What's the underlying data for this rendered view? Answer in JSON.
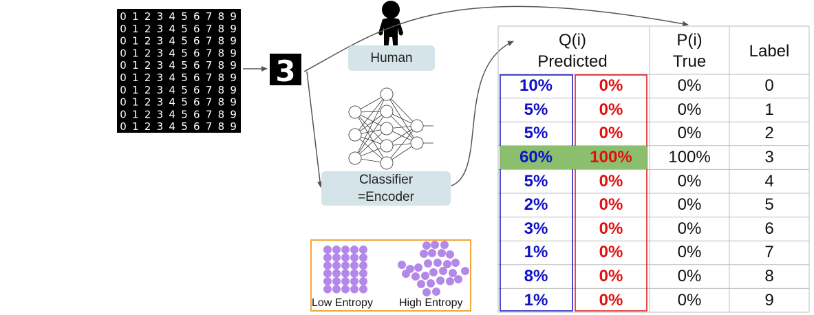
{
  "human_label": "Human",
  "classifier_label": "Classifier\n=Encoder",
  "mnist_digits": [
    "0",
    "1",
    "2",
    "3",
    "4",
    "5",
    "6",
    "7",
    "8",
    "9"
  ],
  "input_digit": "3",
  "entropy": {
    "low_label": "Low Entropy",
    "high_label": "High Entropy",
    "dot_color": "#b388e8",
    "border_color": "#f4a53a"
  },
  "table": {
    "q_header": "Q(i)\nPredicted",
    "p_header": "P(i)\nTrue",
    "label_header": "Label",
    "highlight_color": "#8bbf6e",
    "rows": [
      {
        "q_blue": "10%",
        "q_red": "0%",
        "p": "0%",
        "label": "0"
      },
      {
        "q_blue": "5%",
        "q_red": "0%",
        "p": "0%",
        "label": "1"
      },
      {
        "q_blue": "5%",
        "q_red": "0%",
        "p": "0%",
        "label": "2"
      },
      {
        "q_blue": "60%",
        "q_red": "100%",
        "p": "100%",
        "label": "3",
        "highlight": true
      },
      {
        "q_blue": "5%",
        "q_red": "0%",
        "p": "0%",
        "label": "4"
      },
      {
        "q_blue": "2%",
        "q_red": "0%",
        "p": "0%",
        "label": "5"
      },
      {
        "q_blue": "3%",
        "q_red": "0%",
        "p": "0%",
        "label": "6"
      },
      {
        "q_blue": "1%",
        "q_red": "0%",
        "p": "0%",
        "label": "7"
      },
      {
        "q_blue": "8%",
        "q_red": "0%",
        "p": "0%",
        "label": "8"
      },
      {
        "q_blue": "1%",
        "q_red": "0%",
        "p": "0%",
        "label": "9"
      }
    ]
  }
}
